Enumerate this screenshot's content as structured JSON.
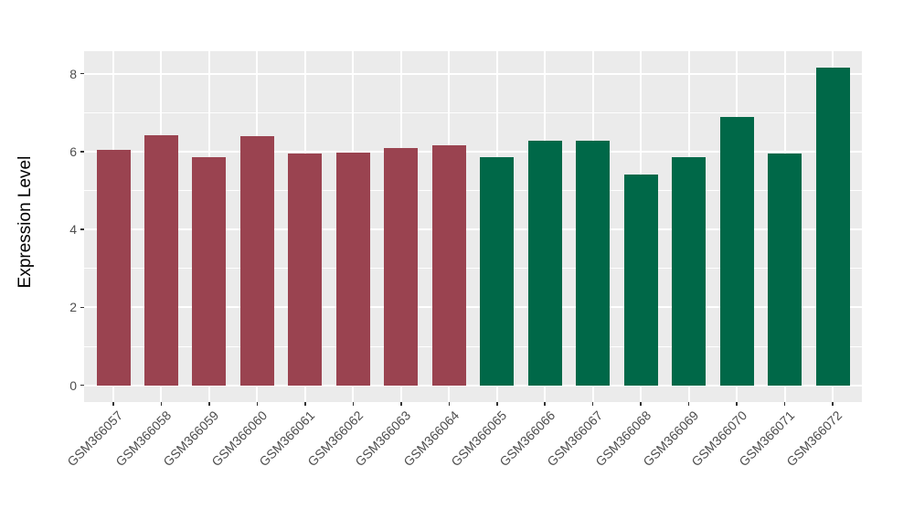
{
  "figure": {
    "background_color": "#FFFFFF",
    "panel_background_color": "#EBEBEB",
    "gridline_color": "#FFFFFF",
    "axis_text_color": "#4D4D4D",
    "axis_title_color": "#000000",
    "tick_mark_color": "#333333"
  },
  "chart_data": {
    "type": "bar",
    "title": "",
    "xlabel": "",
    "ylabel": "Expression Level",
    "categories": [
      "GSM366057",
      "GSM366058",
      "GSM366059",
      "GSM366060",
      "GSM366061",
      "GSM366062",
      "GSM366063",
      "GSM366064",
      "GSM366065",
      "GSM366066",
      "GSM366067",
      "GSM366068",
      "GSM366069",
      "GSM366070",
      "GSM366071",
      "GSM366072"
    ],
    "values": [
      6.05,
      6.43,
      5.86,
      6.4,
      5.96,
      5.97,
      6.09,
      6.16,
      5.86,
      6.28,
      6.29,
      5.41,
      5.86,
      6.88,
      5.95,
      8.16
    ],
    "bar_colors": [
      "#9A4350",
      "#9A4350",
      "#9A4350",
      "#9A4350",
      "#9A4350",
      "#9A4350",
      "#9A4350",
      "#9A4350",
      "#006848",
      "#006848",
      "#006848",
      "#006848",
      "#006848",
      "#006848",
      "#006848",
      "#006848"
    ],
    "group_colors": {
      "first_group": "#9A4350",
      "second_group": "#006848"
    },
    "yticks": [
      0,
      2,
      4,
      6,
      8
    ],
    "yticks_minor": [
      1,
      3,
      5,
      7
    ],
    "ylim": [
      -0.43,
      8.58
    ],
    "grid": true,
    "legend": "none",
    "x_tick_rotation_deg": 45
  }
}
